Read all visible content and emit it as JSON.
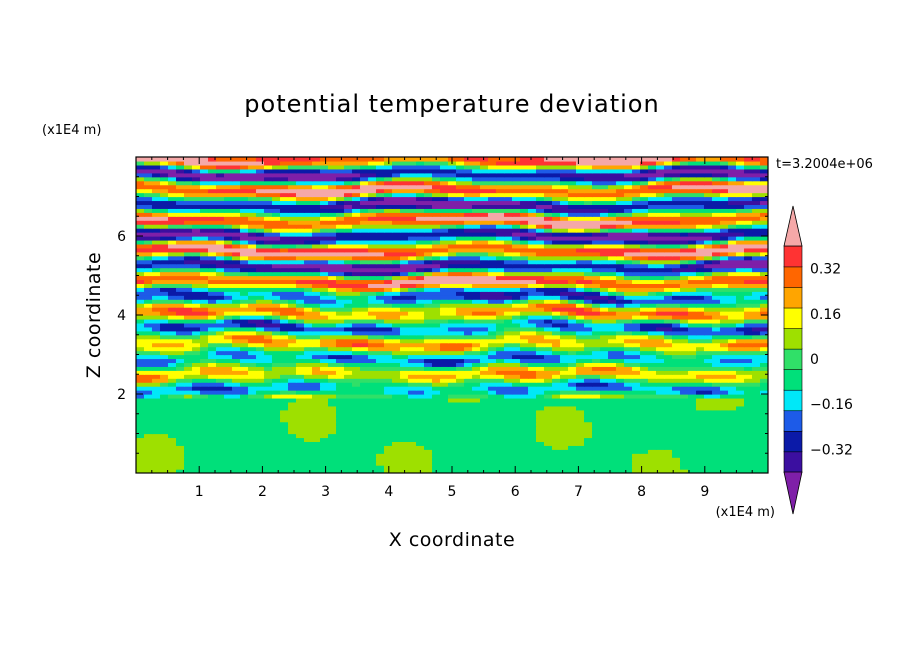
{
  "chart_data": {
    "type": "heatmap",
    "title": "potential temperature deviation",
    "xlabel": "X coordinate",
    "ylabel": "Z coordinate",
    "x_unit": "(x1E4 m)",
    "y_unit": "(x1E4 m)",
    "time_label": "t=3.2004e+06",
    "x_ticks": [
      "1",
      "2",
      "3",
      "4",
      "5",
      "6",
      "7",
      "8",
      "9"
    ],
    "y_ticks": [
      "2",
      "4",
      "6"
    ],
    "xlim": [
      0,
      10
    ],
    "ylim": [
      0,
      8
    ],
    "colorbar": {
      "levels": [
        -0.48,
        -0.4,
        -0.32,
        -0.24,
        -0.16,
        -0.08,
        0,
        0.08,
        0.16,
        0.24,
        0.32,
        0.4,
        0.48
      ],
      "labels": [
        "0.32",
        "0.16",
        "0",
        "−0.16",
        "−0.32"
      ],
      "label_values": [
        0.32,
        0.16,
        0,
        -0.16,
        -0.32
      ],
      "colors": [
        "#7f1fa8",
        "#3b0fa0",
        "#0b1aa8",
        "#1d5be8",
        "#00e8f8",
        "#00e07a",
        "#30e068",
        "#9ee000",
        "#ffff00",
        "#ffa500",
        "#ff6600",
        "#ff3333",
        "#f5a8a8"
      ]
    },
    "layers": [
      {
        "z": [
          0,
          1.6
        ],
        "value": -0.05,
        "description": "near-zero region"
      },
      {
        "z": [
          1.6,
          4.5
        ],
        "value": 0.0,
        "description": "mixed bands"
      },
      {
        "z": [
          4.5,
          8
        ],
        "value": 0.0,
        "description": "alternating strong bands"
      }
    ]
  }
}
